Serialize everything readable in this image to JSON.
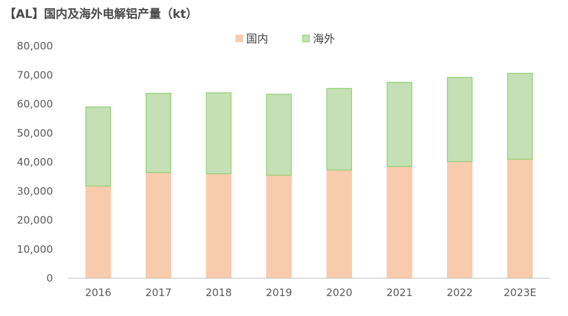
{
  "chart_data": {
    "type": "bar",
    "stacked": true,
    "title": "【AL】国内及海外电解铝产量（kt）",
    "categories": [
      "2016",
      "2017",
      "2018",
      "2019",
      "2020",
      "2021",
      "2022",
      "2023E"
    ],
    "series": [
      {
        "name": "国内",
        "color": "#f8cbad",
        "border": "#f8cbad",
        "values": [
          31800,
          36400,
          36000,
          35500,
          37300,
          38500,
          40200,
          41000
        ]
      },
      {
        "name": "海外",
        "color": "#c5e0b4",
        "border": "#8fcf72",
        "values": [
          27200,
          27300,
          27900,
          27900,
          28100,
          29000,
          29000,
          29600
        ]
      }
    ],
    "yticks": [
      "0",
      "10,000",
      "20,000",
      "30,000",
      "40,000",
      "50,000",
      "60,000",
      "70,000",
      "80,000"
    ],
    "ylim": [
      0,
      80000
    ],
    "grid": false,
    "legend": "top-center"
  }
}
